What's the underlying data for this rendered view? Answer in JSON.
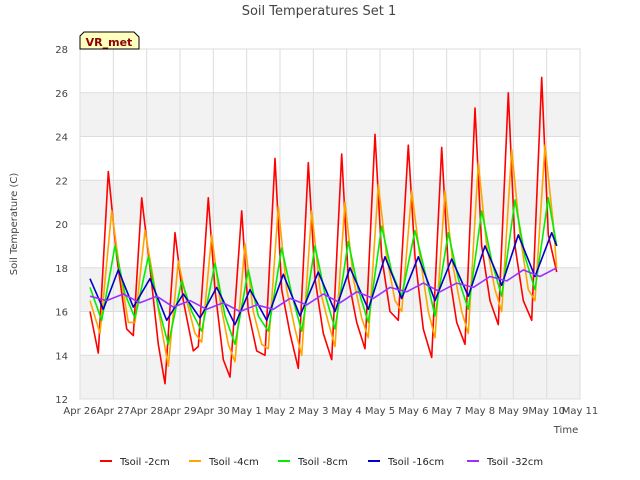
{
  "chart_data": {
    "type": "line",
    "title": "Soil Temperatures Set 1",
    "xlabel": "Time",
    "ylabel": "Soil Temperature (C)",
    "station_label": "VR_met",
    "ylim": [
      12,
      28
    ],
    "xlim": [
      0,
      15
    ],
    "yticks": [
      12,
      14,
      16,
      18,
      20,
      22,
      24,
      26,
      28
    ],
    "xticks": [
      {
        "value": 0,
        "label": "Apr 26"
      },
      {
        "value": 1,
        "label": "Apr 27"
      },
      {
        "value": 2,
        "label": "Apr 28"
      },
      {
        "value": 3,
        "label": "Apr 29"
      },
      {
        "value": 4,
        "label": "Apr 30"
      },
      {
        "value": 5,
        "label": "May 1"
      },
      {
        "value": 6,
        "label": "May 2"
      },
      {
        "value": 7,
        "label": "May 3"
      },
      {
        "value": 8,
        "label": "May 4"
      },
      {
        "value": 9,
        "label": "May 5"
      },
      {
        "value": 10,
        "label": "May 6"
      },
      {
        "value": 11,
        "label": "May 7"
      },
      {
        "value": 12,
        "label": "May 8"
      },
      {
        "value": 13,
        "label": "May 9"
      },
      {
        "value": 14,
        "label": "May 10"
      },
      {
        "value": 15,
        "label": "May 11"
      }
    ],
    "grid": true,
    "legend_position": "bottom",
    "series": [
      {
        "name": "Tsoil -2cm",
        "color": "#ff0000",
        "x": [
          0.3,
          0.55,
          0.85,
          1.1,
          1.4,
          1.6,
          1.85,
          2.1,
          2.35,
          2.55,
          2.85,
          3.1,
          3.4,
          3.55,
          3.85,
          4.05,
          4.3,
          4.5,
          4.85,
          5.05,
          5.3,
          5.55,
          5.85,
          6.05,
          6.3,
          6.55,
          6.85,
          7.05,
          7.3,
          7.55,
          7.85,
          8.05,
          8.3,
          8.55,
          8.85,
          9.05,
          9.3,
          9.55,
          9.85,
          10.05,
          10.3,
          10.55,
          10.85,
          11.05,
          11.3,
          11.55,
          11.85,
          12.05,
          12.3,
          12.55,
          12.85,
          13.05,
          13.3,
          13.55,
          13.85,
          14.05,
          14.3
        ],
        "values": [
          16.0,
          14.1,
          22.4,
          18.5,
          15.2,
          14.9,
          21.2,
          18.0,
          14.5,
          12.7,
          19.6,
          16.5,
          14.2,
          14.4,
          21.2,
          17.0,
          13.8,
          13.0,
          20.6,
          16.0,
          14.2,
          14.0,
          23.0,
          17.0,
          15.0,
          13.4,
          22.8,
          17.5,
          15.0,
          13.8,
          23.2,
          17.5,
          15.5,
          14.3,
          24.1,
          18.5,
          16.0,
          15.6,
          23.6,
          18.5,
          15.2,
          13.9,
          23.5,
          18.0,
          15.5,
          14.5,
          25.3,
          19.0,
          16.5,
          15.4,
          26.0,
          19.0,
          16.5,
          15.6,
          26.7,
          19.5,
          17.8
        ]
      },
      {
        "name": "Tsoil -4cm",
        "color": "#ffa500",
        "x": [
          0.3,
          0.6,
          0.95,
          1.2,
          1.45,
          1.65,
          1.95,
          2.2,
          2.45,
          2.65,
          2.95,
          3.2,
          3.45,
          3.65,
          3.95,
          4.2,
          4.45,
          4.65,
          4.95,
          5.2,
          5.45,
          5.65,
          5.95,
          6.2,
          6.45,
          6.65,
          6.95,
          7.2,
          7.45,
          7.65,
          7.95,
          8.2,
          8.45,
          8.65,
          8.95,
          9.2,
          9.45,
          9.65,
          9.95,
          10.2,
          10.45,
          10.65,
          10.95,
          11.2,
          11.45,
          11.65,
          11.95,
          12.2,
          12.45,
          12.65,
          12.95,
          13.2,
          13.45,
          13.65,
          13.95,
          14.2,
          14.3
        ],
        "values": [
          16.5,
          15.0,
          20.6,
          17.8,
          15.5,
          15.5,
          19.7,
          17.5,
          15.2,
          13.5,
          18.3,
          16.5,
          15.0,
          14.6,
          19.5,
          16.5,
          14.5,
          13.7,
          19.1,
          16.0,
          14.5,
          14.3,
          20.8,
          17.0,
          15.2,
          14.0,
          20.6,
          17.0,
          15.5,
          14.4,
          21.0,
          17.5,
          15.7,
          14.8,
          21.8,
          18.5,
          16.5,
          16.0,
          21.5,
          18.5,
          16.0,
          14.8,
          21.5,
          18.0,
          16.0,
          15.0,
          22.8,
          19.0,
          17.0,
          16.0,
          23.4,
          19.5,
          17.0,
          16.5,
          23.6,
          20.0,
          18.0
        ]
      },
      {
        "name": "Tsoil -8cm",
        "color": "#00ee00",
        "x": [
          0.3,
          0.65,
          1.05,
          1.35,
          1.65,
          2.05,
          2.35,
          2.65,
          3.05,
          3.35,
          3.65,
          4.05,
          4.35,
          4.65,
          5.05,
          5.35,
          5.65,
          6.05,
          6.35,
          6.65,
          7.05,
          7.35,
          7.65,
          8.05,
          8.35,
          8.65,
          9.05,
          9.35,
          9.65,
          10.05,
          10.35,
          10.65,
          11.05,
          11.35,
          11.65,
          12.05,
          12.35,
          12.65,
          13.05,
          13.35,
          13.65,
          14.05,
          14.3
        ],
        "values": [
          17.1,
          15.6,
          19.0,
          16.8,
          15.7,
          18.5,
          16.2,
          14.5,
          17.4,
          16.0,
          15.1,
          18.2,
          15.8,
          14.5,
          17.9,
          15.8,
          15.1,
          18.9,
          16.8,
          15.1,
          19.0,
          16.8,
          15.2,
          19.2,
          17.0,
          15.5,
          19.9,
          17.8,
          16.7,
          19.7,
          17.8,
          15.8,
          19.6,
          17.5,
          16.1,
          20.6,
          18.3,
          16.7,
          21.1,
          18.5,
          17.0,
          21.2,
          19.0
        ]
      },
      {
        "name": "Tsoil -16cm",
        "color": "#0000cc",
        "x": [
          0.3,
          0.7,
          1.15,
          1.6,
          2.1,
          2.6,
          3.1,
          3.6,
          4.1,
          4.65,
          5.1,
          5.6,
          6.1,
          6.6,
          7.15,
          7.65,
          8.1,
          8.65,
          9.15,
          9.65,
          10.15,
          10.65,
          11.15,
          11.65,
          12.15,
          12.65,
          13.15,
          13.65,
          14.15,
          14.3
        ],
        "values": [
          17.5,
          16.1,
          17.9,
          16.2,
          17.5,
          15.6,
          16.8,
          15.7,
          17.1,
          15.4,
          17.0,
          15.6,
          17.7,
          15.8,
          17.8,
          16.0,
          18.0,
          16.1,
          18.5,
          16.6,
          18.5,
          16.5,
          18.4,
          16.7,
          19.0,
          17.2,
          19.5,
          17.6,
          19.6,
          19.0
        ]
      },
      {
        "name": "Tsoil -32cm",
        "color": "#9b30ff",
        "x": [
          0.3,
          0.8,
          1.3,
          1.8,
          2.3,
          2.8,
          3.3,
          3.8,
          4.3,
          4.8,
          5.3,
          5.8,
          6.3,
          6.8,
          7.3,
          7.8,
          8.3,
          8.8,
          9.3,
          9.8,
          10.3,
          10.8,
          11.3,
          11.8,
          12.3,
          12.8,
          13.3,
          13.8,
          14.3
        ],
        "values": [
          16.7,
          16.5,
          16.8,
          16.4,
          16.7,
          16.2,
          16.5,
          16.1,
          16.4,
          16.0,
          16.3,
          16.1,
          16.6,
          16.3,
          16.8,
          16.4,
          16.9,
          16.6,
          17.1,
          16.9,
          17.3,
          16.9,
          17.3,
          17.1,
          17.6,
          17.4,
          17.9,
          17.6,
          18.0
        ]
      }
    ]
  }
}
